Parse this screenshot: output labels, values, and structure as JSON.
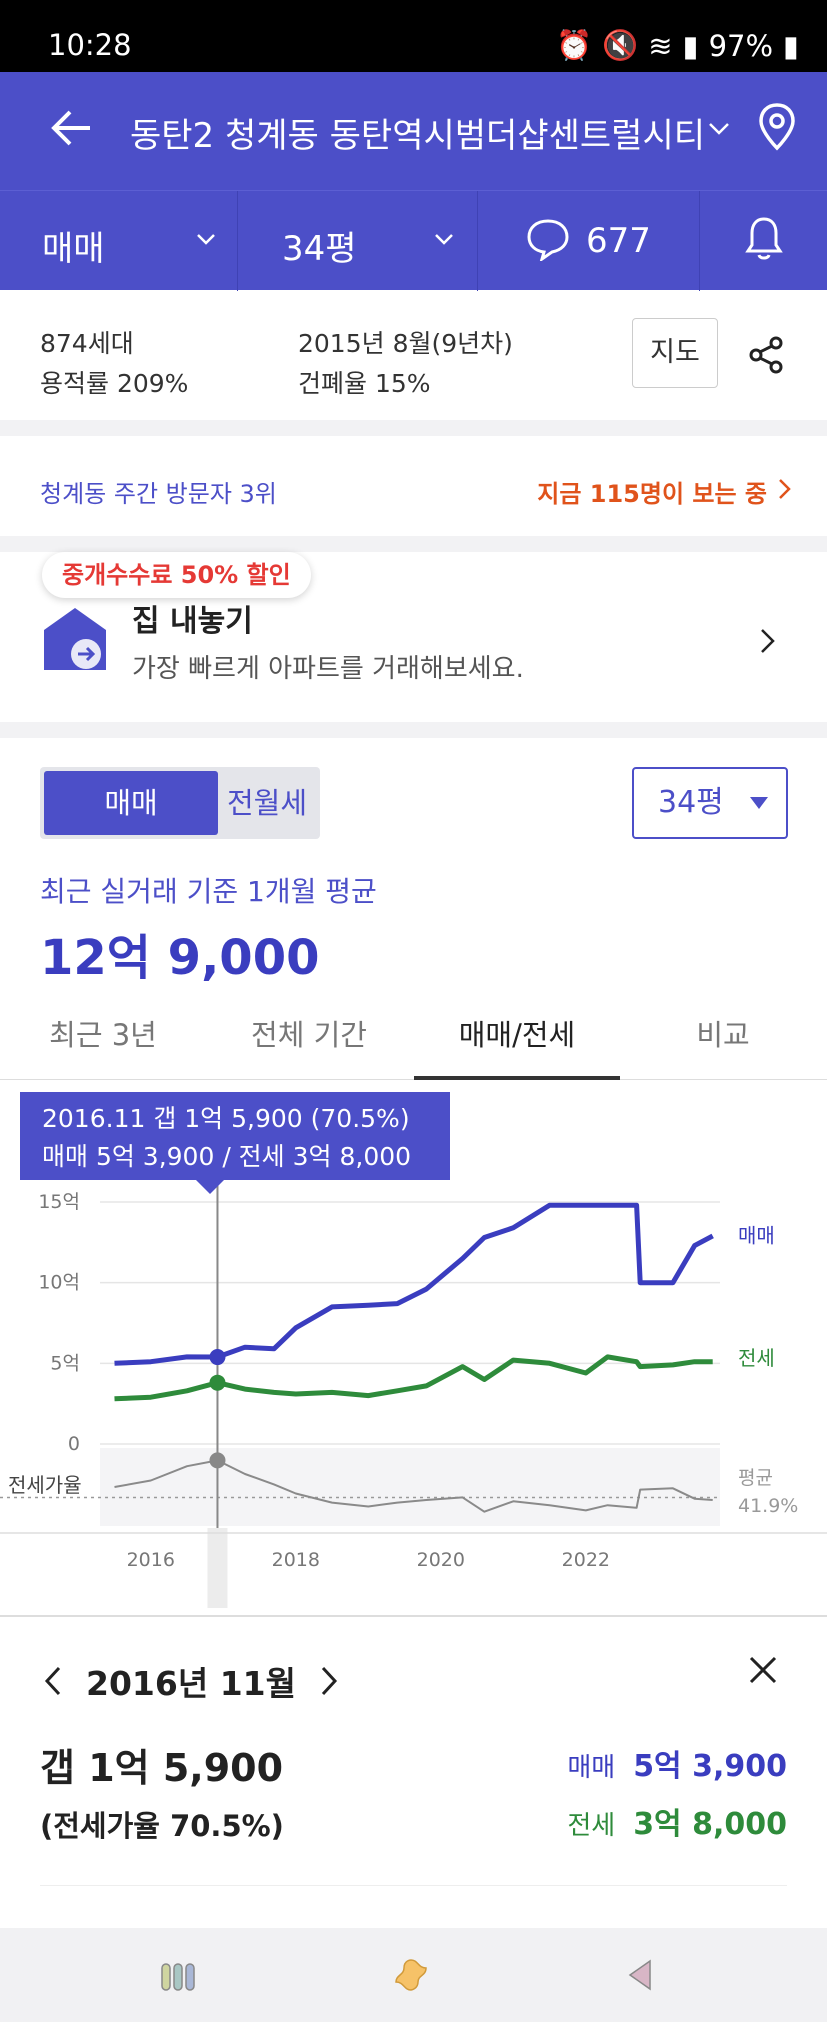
{
  "status_bar": {
    "time": "10:28",
    "battery": "97%"
  },
  "header": {
    "title": "동탄2 청계동 동탄역시범더샵센트럴시티"
  },
  "filters": {
    "trade_type": "매매",
    "size": "34평",
    "comment_count": "677"
  },
  "complex_info": {
    "households": "874세대",
    "floor_area_ratio": "용적률 209%",
    "built": "2015년 8월(9년차)",
    "coverage_ratio": "건폐율 15%",
    "map_button": "지도"
  },
  "visitors": {
    "rank": "청계동 주간 방문자 3위",
    "now_viewing": "지금 115명이 보는 중"
  },
  "sell_banner": {
    "badge": "중개수수료 50% 할인",
    "title": "집 내놓기",
    "subtitle": "가장 빠르게 아파트를 거래해보세요."
  },
  "price_section": {
    "toggle_active": "매매",
    "toggle_inactive": "전월세",
    "size_select": "34평",
    "subtitle": "최근 실거래 기준 1개월 평균",
    "price": "12억 9,000"
  },
  "chart_tabs": [
    "최근 3년",
    "전체 기간",
    "매매/전세",
    "비교"
  ],
  "chart_tab_active": "매매/전세",
  "tooltip": {
    "line1": "2016.11  갭 1억 5,900 (70.5%)",
    "line2": "매매 5억 3,900 / 전세 3억 8,000"
  },
  "chart_data": {
    "type": "line",
    "x_ticks": [
      "2016",
      "2018",
      "2020",
      "2022"
    ],
    "y_ticks": [
      "15억",
      "10억",
      "5억",
      "0"
    ],
    "ylim": [
      0,
      15
    ],
    "series_labels": {
      "sale": "매매",
      "jeonse": "전세"
    },
    "x": [
      2015.5,
      2016.0,
      2016.5,
      2016.92,
      2017.3,
      2017.7,
      2018.0,
      2018.5,
      2019.0,
      2019.4,
      2019.8,
      2020.3,
      2020.6,
      2021.0,
      2021.5,
      2022.0,
      2022.3,
      2022.7,
      2022.75,
      2023.2,
      2023.5,
      2023.75
    ],
    "sale_values": [
      5.0,
      5.1,
      5.4,
      5.39,
      6.0,
      5.9,
      7.2,
      8.5,
      8.6,
      8.7,
      9.6,
      11.5,
      12.8,
      13.4,
      14.8,
      14.8,
      14.8,
      14.8,
      10.0,
      10.0,
      12.3,
      12.9
    ],
    "jeonse_values": [
      2.8,
      2.9,
      3.3,
      3.8,
      3.4,
      3.2,
      3.1,
      3.2,
      3.0,
      3.3,
      3.6,
      4.8,
      4.0,
      5.2,
      5.0,
      4.4,
      5.4,
      5.1,
      4.8,
      4.9,
      5.1,
      5.1
    ],
    "ratio_label": "전세가율",
    "ratio_avg_label": "평균",
    "ratio_avg": "41.9%",
    "ratio_values": [
      50,
      55,
      66,
      70.5,
      60,
      52,
      45,
      38,
      35,
      38,
      40,
      42,
      31,
      39,
      36,
      32,
      36,
      34,
      48,
      49,
      41,
      40
    ]
  },
  "detail": {
    "month": "2016년 11월",
    "gap": "갭 1억 5,900",
    "ratio": "(전세가율 70.5%)",
    "sale_label": "매매",
    "sale_value": "5억 3,900",
    "jeonse_label": "전세",
    "jeonse_value": "3억 8,000"
  },
  "colors": {
    "brand": "#4c4fc8",
    "sale": "#3a3dbf",
    "jeonse": "#2e8b3b",
    "accent": "#e0531b"
  }
}
